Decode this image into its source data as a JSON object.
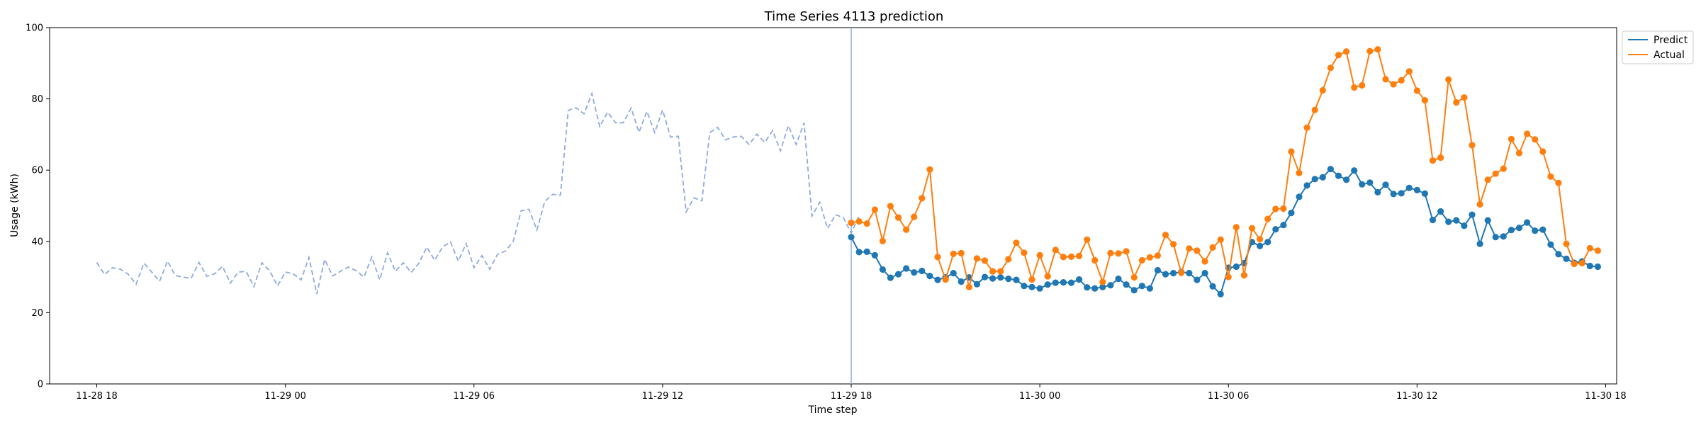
{
  "chart_data": {
    "type": "line",
    "title": "Time Series 4113 prediction",
    "xlabel": "Time step",
    "ylabel": "Usage (kWh)",
    "ylim": [
      0,
      100
    ],
    "yticks": [
      0,
      20,
      40,
      60,
      80,
      100
    ],
    "xlim_hours": [
      -1.5,
      48.35
    ],
    "xticks": [
      {
        "hour": 0,
        "label": "11-28 18"
      },
      {
        "hour": 6,
        "label": "11-29 00"
      },
      {
        "hour": 12,
        "label": "11-29 06"
      },
      {
        "hour": 18,
        "label": "11-29 12"
      },
      {
        "hour": 24,
        "label": "11-29 18"
      },
      {
        "hour": 30,
        "label": "11-30 00"
      },
      {
        "hour": 36,
        "label": "11-30 06"
      },
      {
        "hour": 42,
        "label": "11-30 12"
      },
      {
        "hour": 48,
        "label": "11-30 18"
      }
    ],
    "forecast_start_hour": 24,
    "step_hours": 0.25,
    "history": {
      "name": "History",
      "start_hour": 0,
      "color": "#8FAADC",
      "style": "dashed",
      "values": [
        34.1,
        30.7,
        32.6,
        32.2,
        30.8,
        28.0,
        33.9,
        31.4,
        28.8,
        34.5,
        30.4,
        30.0,
        29.6,
        34.1,
        30.2,
        30.9,
        33.0,
        28.3,
        31.4,
        31.6,
        27.3,
        34.0,
        31.7,
        27.5,
        31.4,
        30.9,
        29.2,
        35.5,
        25.2,
        35.0,
        30.3,
        31.6,
        32.8,
        31.8,
        30.0,
        35.6,
        29.2,
        36.8,
        31.6,
        34.0,
        31.3,
        33.9,
        38.4,
        34.7,
        38.4,
        39.9,
        34.5,
        39.4,
        32.6,
        36.0,
        32.2,
        36.4,
        37.3,
        40.0,
        48.6,
        49.0,
        43.2,
        51.2,
        53.2,
        53.0,
        76.8,
        77.5,
        75.8,
        81.5,
        72.2,
        76.3,
        73.3,
        73.3,
        77.4,
        70.6,
        76.5,
        70.6,
        76.9,
        69.3,
        69.5,
        48.3,
        52.2,
        51.4,
        70.5,
        72.0,
        68.5,
        69.3,
        69.5,
        67.2,
        70.1,
        67.8,
        71.1,
        65.4,
        72.5,
        67.2,
        73.3,
        47.1,
        51.0,
        43.6,
        47.5,
        46.7,
        42.3,
        47.2
      ]
    },
    "series": [
      {
        "name": "Predict",
        "color": "#1F77B4",
        "start_hour": 24,
        "values": [
          41.2,
          37.0,
          37.1,
          36.1,
          32.1,
          29.8,
          30.8,
          32.4,
          31.3,
          31.7,
          30.3,
          29.2,
          29.9,
          31.1,
          28.7,
          29.9,
          28.0,
          30.0,
          29.6,
          29.9,
          29.5,
          29.2,
          27.5,
          27.2,
          26.8,
          27.9,
          28.4,
          28.5,
          28.4,
          29.3,
          27.1,
          26.8,
          27.2,
          27.7,
          29.5,
          27.9,
          26.3,
          27.5,
          26.8,
          31.9,
          30.8,
          31.1,
          31.4,
          31.1,
          29.2,
          31.1,
          27.4,
          25.2,
          32.6,
          32.9,
          33.9,
          39.8,
          38.7,
          39.8,
          43.4,
          44.6,
          48.0,
          52.5,
          55.7,
          57.5,
          58.0,
          60.3,
          58.4,
          57.3,
          59.9,
          56.0,
          56.5,
          53.8,
          55.9,
          53.3,
          53.5,
          55.0,
          54.4,
          53.4,
          46.0,
          48.4,
          45.5,
          45.9,
          44.4,
          47.5,
          39.3,
          45.9,
          41.2,
          41.4,
          43.2,
          43.8,
          45.3,
          43.0,
          43.3,
          39.1,
          36.4,
          35.1,
          34.0,
          34.4,
          33.1,
          32.9
        ]
      },
      {
        "name": "Actual",
        "color": "#FF7F0E",
        "start_hour": 24,
        "values": [
          45.2,
          45.6,
          45.0,
          48.9,
          40.1,
          49.9,
          46.7,
          43.3,
          46.9,
          52.1,
          60.2,
          35.6,
          29.3,
          36.5,
          36.7,
          27.2,
          35.2,
          34.6,
          31.6,
          31.6,
          35.0,
          39.6,
          36.8,
          29.3,
          36.1,
          30.2,
          37.6,
          35.6,
          35.7,
          35.9,
          40.5,
          34.7,
          28.6,
          36.7,
          36.6,
          37.2,
          29.9,
          34.7,
          35.5,
          36.0,
          41.8,
          39.2,
          31.2,
          38.0,
          37.4,
          34.4,
          38.3,
          40.5,
          30.0,
          44.0,
          30.5,
          43.7,
          40.6,
          46.3,
          49.1,
          49.2,
          65.2,
          59.2,
          71.9,
          76.9,
          82.4,
          88.7,
          92.3,
          93.3,
          83.2,
          83.8,
          93.4,
          93.9,
          85.5,
          84.1,
          85.2,
          87.7,
          82.3,
          79.6,
          62.7,
          63.5,
          85.4,
          79.0,
          80.4,
          67.0,
          50.4,
          57.3,
          59.0,
          60.4,
          68.7,
          64.8,
          70.2,
          68.6,
          65.2,
          58.2,
          56.4,
          39.3,
          33.7,
          33.9,
          38.1,
          37.4
        ]
      }
    ],
    "legend": {
      "position": "top-right outside",
      "entries": [
        {
          "label": "Predict",
          "color": "#1F77B4"
        },
        {
          "label": "Actual",
          "color": "#FF7F0E"
        }
      ]
    }
  }
}
